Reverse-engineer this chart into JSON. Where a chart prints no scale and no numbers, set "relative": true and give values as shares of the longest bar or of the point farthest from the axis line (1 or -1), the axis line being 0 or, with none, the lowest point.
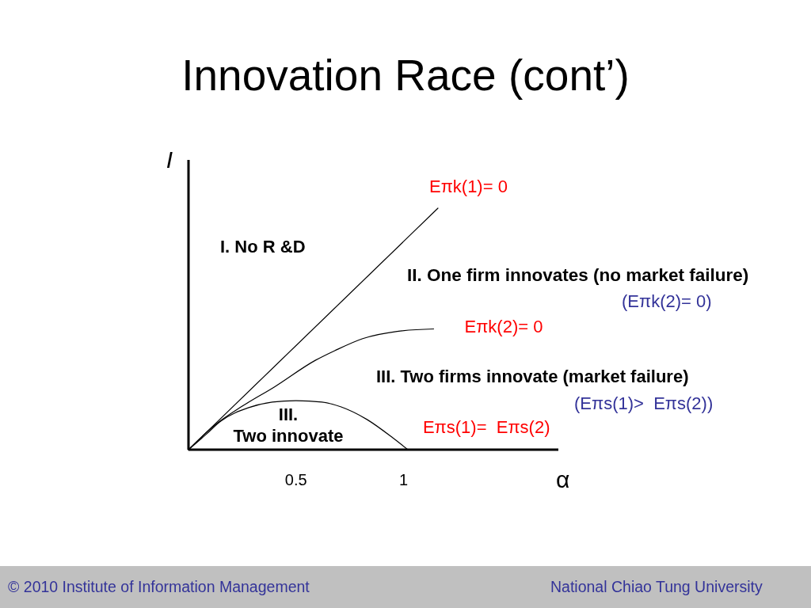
{
  "chart_data": {
    "type": "line",
    "title": "Innovation Race (cont’)",
    "xlabel": "α",
    "ylabel": "I",
    "relative": true,
    "xlim": [
      0,
      1.72
    ],
    "xticks": [
      0.5,
      1
    ],
    "tick_labels": "x",
    "series": [
      {
        "name": "Eπk(1)= 0",
        "color": "#000000",
        "x": [
          0,
          1.16
        ],
        "values": [
          0,
          1
        ]
      },
      {
        "name": "Eπk(2)= 0",
        "color": "#000000",
        "x": [
          0,
          0.12,
          0.25,
          0.4,
          0.59,
          0.68,
          0.81,
          0.97,
          1.14
        ],
        "values": [
          0,
          0.1,
          0.18,
          0.26,
          0.37,
          0.41,
          0.46,
          0.49,
          0.5
        ]
      },
      {
        "name": "Eπs(1)=  Eπs(2)",
        "color": "#000000",
        "x": [
          0,
          0.08,
          0.15,
          0.28,
          0.39,
          0.5,
          0.62,
          0.71,
          0.83,
          0.95,
          1.02
        ],
        "values": [
          0,
          0.062,
          0.118,
          0.174,
          0.197,
          0.203,
          0.197,
          0.177,
          0.125,
          0.049,
          0
        ]
      }
    ],
    "annotations": [
      "I. No R &D",
      "II. One firm innovates (no market failure)",
      "(Eπk(2)= 0)",
      "III. Two firms innovate (market failure)",
      "(Eπs(1)>  Eπs(2))",
      "III.\nTwo innovate",
      "© 2010 Institute of Information Management",
      "National Chiao Tung University"
    ]
  }
}
